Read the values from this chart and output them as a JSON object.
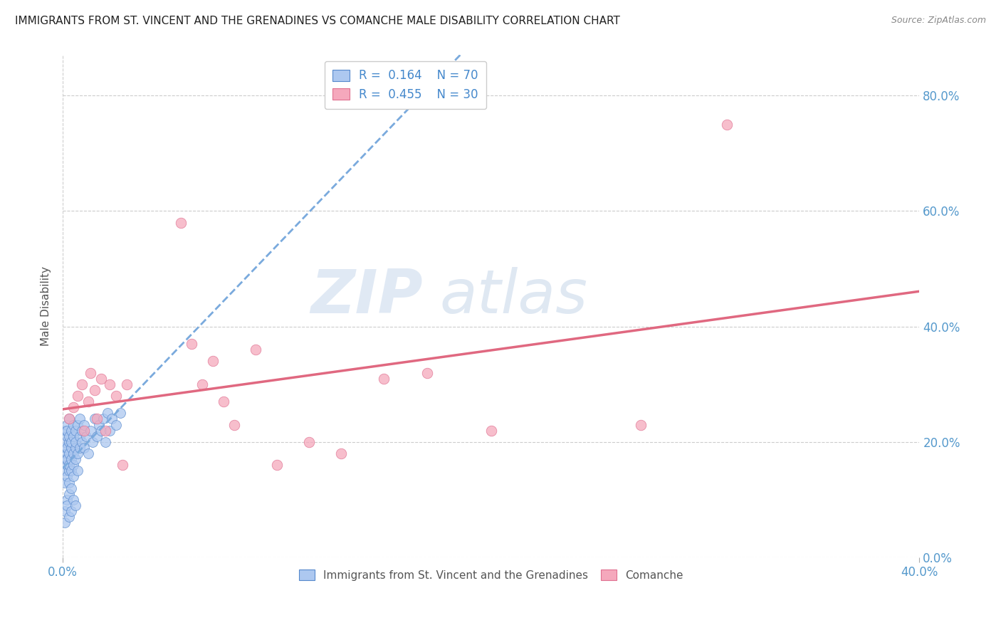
{
  "title": "IMMIGRANTS FROM ST. VINCENT AND THE GRENADINES VS COMANCHE MALE DISABILITY CORRELATION CHART",
  "source": "Source: ZipAtlas.com",
  "ylabel": "Male Disability",
  "xlim": [
    0.0,
    0.4
  ],
  "ylim": [
    0.0,
    0.87
  ],
  "yticks": [
    0.0,
    0.2,
    0.4,
    0.6,
    0.8
  ],
  "xticks_show": [
    0.0,
    0.4
  ],
  "blue_R": 0.164,
  "blue_N": 70,
  "pink_R": 0.455,
  "pink_N": 30,
  "blue_color": "#adc8f0",
  "pink_color": "#f5a8bc",
  "blue_edge_color": "#5588cc",
  "pink_edge_color": "#e07090",
  "blue_line_color": "#7aaadd",
  "pink_line_color": "#e06880",
  "legend_label_blue": "Immigrants from St. Vincent and the Grenadines",
  "legend_label_pink": "Comanche",
  "watermark_zip": "ZIP",
  "watermark_atlas": "atlas",
  "blue_x": [
    0.001,
    0.001,
    0.001,
    0.001,
    0.001,
    0.001,
    0.002,
    0.002,
    0.002,
    0.002,
    0.002,
    0.002,
    0.002,
    0.002,
    0.003,
    0.003,
    0.003,
    0.003,
    0.003,
    0.003,
    0.003,
    0.004,
    0.004,
    0.004,
    0.004,
    0.004,
    0.005,
    0.005,
    0.005,
    0.005,
    0.005,
    0.006,
    0.006,
    0.006,
    0.006,
    0.007,
    0.007,
    0.007,
    0.008,
    0.008,
    0.008,
    0.009,
    0.009,
    0.01,
    0.01,
    0.011,
    0.012,
    0.013,
    0.014,
    0.015,
    0.016,
    0.017,
    0.018,
    0.019,
    0.02,
    0.021,
    0.022,
    0.023,
    0.025,
    0.027,
    0.001,
    0.001,
    0.002,
    0.002,
    0.003,
    0.003,
    0.004,
    0.004,
    0.005,
    0.006
  ],
  "blue_y": [
    0.17,
    0.19,
    0.2,
    0.22,
    0.15,
    0.13,
    0.21,
    0.18,
    0.16,
    0.23,
    0.14,
    0.19,
    0.17,
    0.22,
    0.2,
    0.15,
    0.18,
    0.13,
    0.21,
    0.16,
    0.24,
    0.17,
    0.19,
    0.22,
    0.15,
    0.2,
    0.18,
    0.16,
    0.21,
    0.23,
    0.14,
    0.19,
    0.17,
    0.22,
    0.2,
    0.18,
    0.23,
    0.15,
    0.21,
    0.19,
    0.24,
    0.2,
    0.22,
    0.19,
    0.23,
    0.21,
    0.18,
    0.22,
    0.2,
    0.24,
    0.21,
    0.23,
    0.22,
    0.24,
    0.2,
    0.25,
    0.22,
    0.24,
    0.23,
    0.25,
    0.08,
    0.06,
    0.1,
    0.09,
    0.11,
    0.07,
    0.12,
    0.08,
    0.1,
    0.09
  ],
  "pink_x": [
    0.003,
    0.005,
    0.007,
    0.009,
    0.01,
    0.012,
    0.013,
    0.015,
    0.016,
    0.018,
    0.02,
    0.022,
    0.025,
    0.028,
    0.03,
    0.055,
    0.06,
    0.065,
    0.07,
    0.075,
    0.08,
    0.09,
    0.1,
    0.115,
    0.13,
    0.15,
    0.17,
    0.2,
    0.27,
    0.31
  ],
  "pink_y": [
    0.24,
    0.26,
    0.28,
    0.3,
    0.22,
    0.27,
    0.32,
    0.29,
    0.24,
    0.31,
    0.22,
    0.3,
    0.28,
    0.16,
    0.3,
    0.58,
    0.37,
    0.3,
    0.34,
    0.27,
    0.23,
    0.36,
    0.16,
    0.2,
    0.18,
    0.31,
    0.32,
    0.22,
    0.23,
    0.75
  ]
}
